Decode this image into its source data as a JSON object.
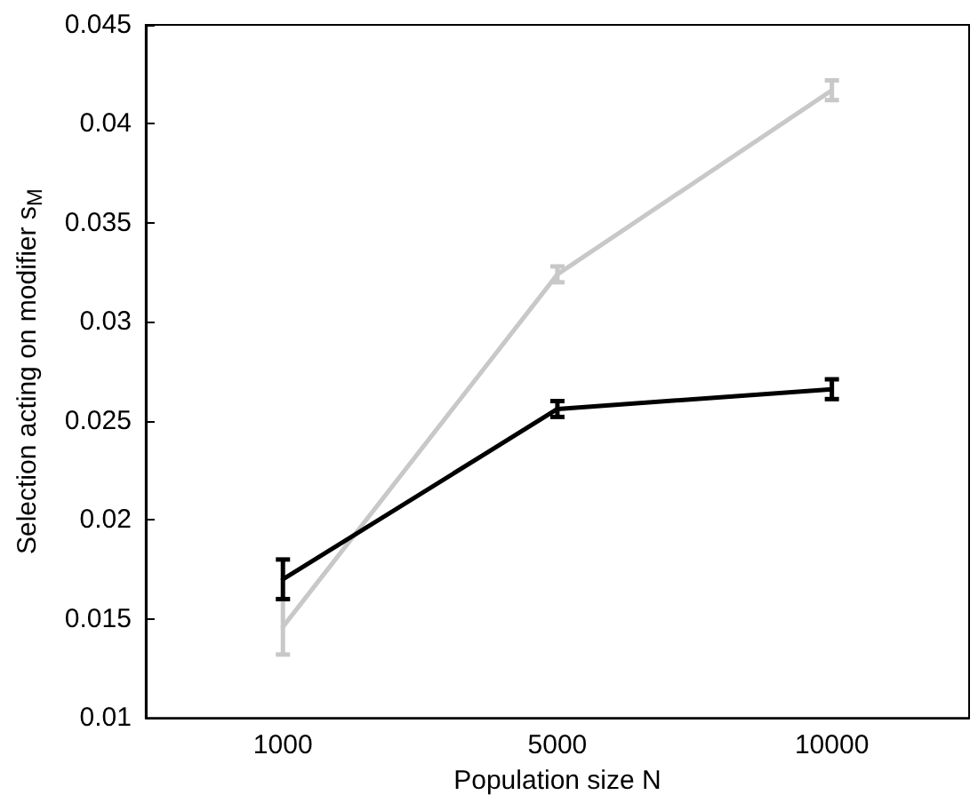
{
  "chart_data": {
    "type": "line",
    "xlabel": "Population size N",
    "ylabel": "Selection acting on modifier s$_{M}$",
    "categories": [
      "1000",
      "5000",
      "10000"
    ],
    "series": [
      {
        "color": "#c8c8c8",
        "values": [
          0.0146,
          0.0324,
          0.0417
        ],
        "errors": [
          0.0014,
          0.0004,
          0.0005
        ]
      },
      {
        "color": "#000000",
        "values": [
          0.017,
          0.0256,
          0.0266
        ],
        "errors": [
          0.001,
          0.0004,
          0.0005
        ]
      }
    ],
    "ylim": [
      0.01,
      0.045
    ],
    "yticks": [
      0.01,
      0.015,
      0.02,
      0.025,
      0.03,
      0.035,
      0.04,
      0.045
    ],
    "grid": false,
    "marker": "none",
    "line_style": "solid"
  }
}
